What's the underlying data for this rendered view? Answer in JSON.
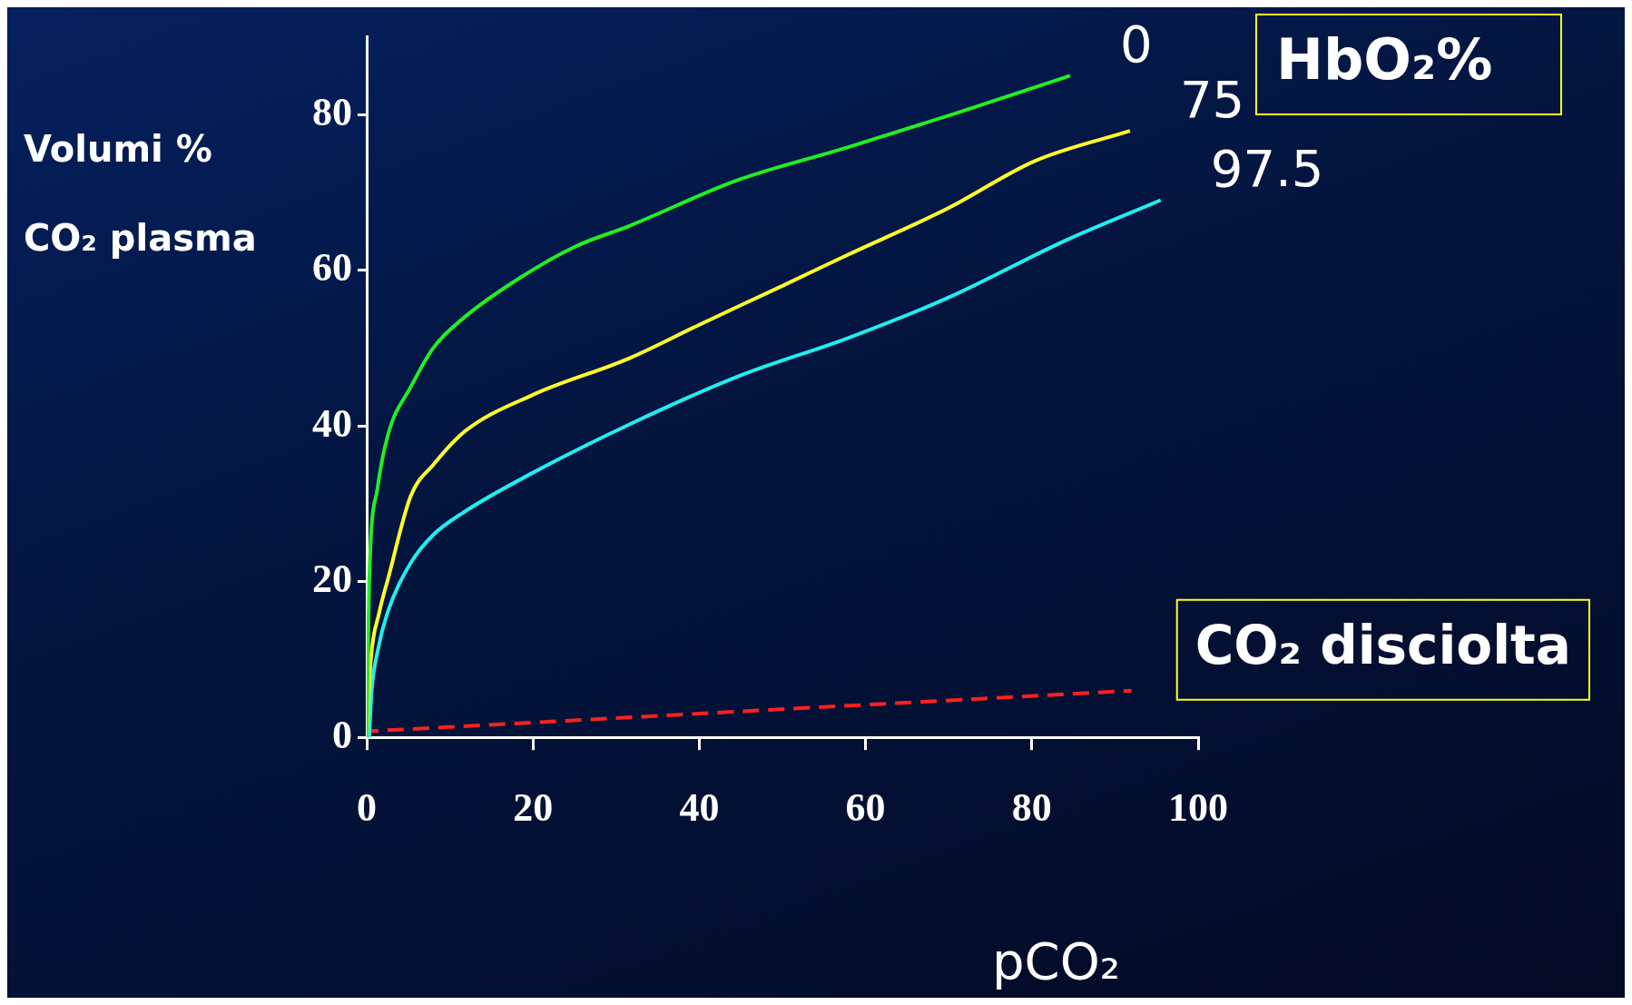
{
  "chart_data": {
    "type": "line",
    "xlabel": "pCO₂",
    "ylabel": "Volumi %\nCO₂ plasma",
    "annotations": [
      "HbO₂%"
    ],
    "xlim": [
      0,
      100
    ],
    "xticks": [
      0,
      20,
      40,
      60,
      80,
      100
    ],
    "ylim": [
      0,
      90
    ],
    "yticks": [
      0,
      20,
      40,
      60,
      80
    ],
    "grid": false,
    "legend": false,
    "marker": "none",
    "series": [
      {
        "name": "0",
        "color": "#22ee22",
        "x": [
          0,
          0.3,
          1.3,
          2.6,
          5.3,
          8,
          11.8,
          18.4,
          25,
          31.6,
          44.7,
          57.9,
          71,
          84.6
        ],
        "values": [
          0,
          20,
          32,
          39,
          45,
          50,
          54,
          59,
          63,
          65.7,
          71.6,
          75.8,
          80.2,
          85
        ]
      },
      {
        "name": "75",
        "color": "#ffff22",
        "x": [
          0,
          0.5,
          1.5,
          2.6,
          5.3,
          8,
          11.8,
          20,
          31.6,
          40,
          50,
          57.9,
          70,
          80.3,
          91.8
        ],
        "values": [
          0,
          10,
          16,
          20.5,
          31,
          35,
          39.3,
          44,
          48.7,
          53,
          58,
          62,
          68,
          74,
          77.9
        ]
      },
      {
        "name": "97.5",
        "color": "#22eeee",
        "x": [
          0.3,
          0.6,
          1.3,
          2.5,
          5.3,
          8,
          11.8,
          20,
          31.6,
          45,
          57.9,
          70,
          84,
          95.5
        ],
        "values": [
          0,
          6,
          11,
          16,
          22.4,
          26,
          29,
          34,
          40.2,
          46.5,
          51.3,
          56.5,
          63.8,
          69
        ]
      },
      {
        "name": "CO₂ disciolta",
        "color": "#ff2020",
        "line_style": "dashed",
        "x": [
          0.5,
          92
        ],
        "values": [
          0.8,
          6
        ]
      }
    ]
  }
}
